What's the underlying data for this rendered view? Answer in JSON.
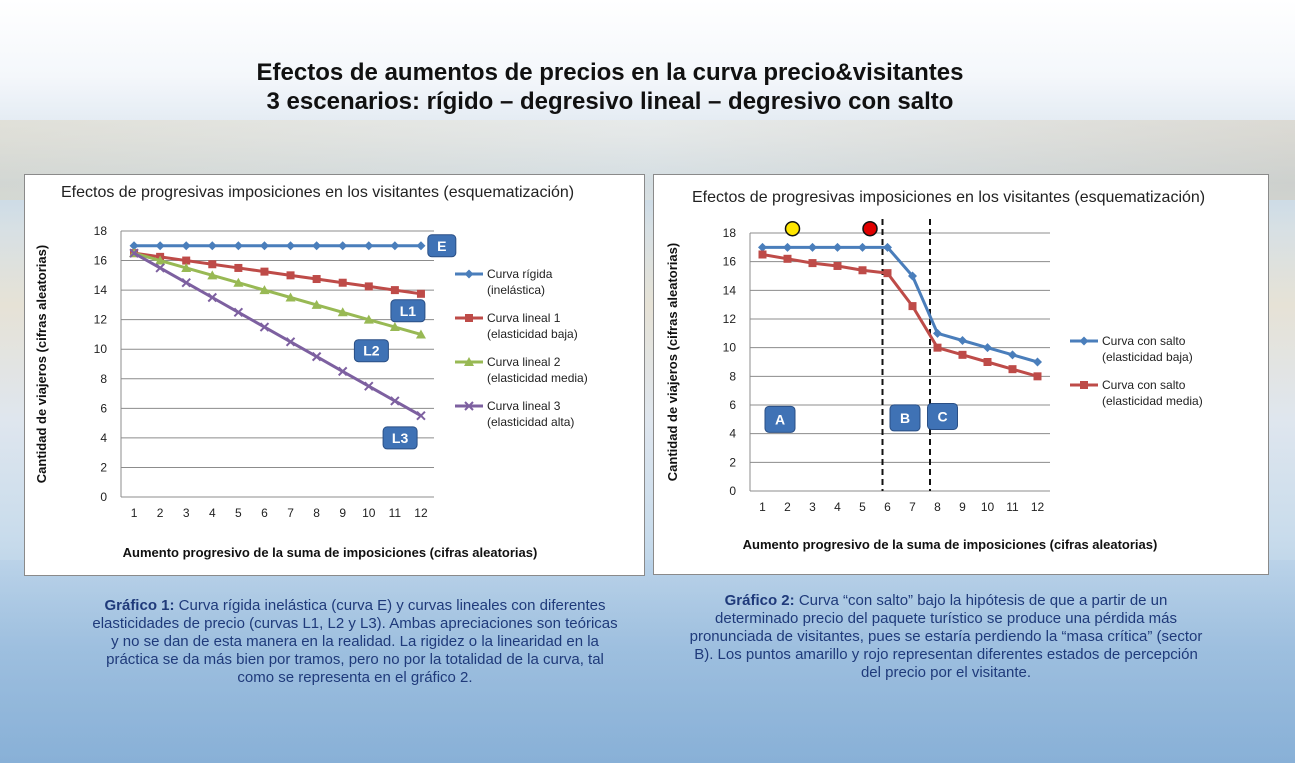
{
  "page": {
    "title_line1": "Efectos de aumentos de precios en la curva precio&visitantes",
    "title_line2": "3 escenarios: rígido – degresivo lineal – degresivo con salto"
  },
  "colors": {
    "blue": "#4a7ebb",
    "red": "#be4b48",
    "green": "#98b954",
    "purple": "#7d60a0",
    "badge": "#3f72b5",
    "caption": "#1f3a7a"
  },
  "chart_data": [
    {
      "type": "line",
      "title": "Efectos de progresivas imposiciones en los visitantes (esquematización)",
      "xlabel": "Aumento progresivo de la suma de imposiciones (cifras aleatorias)",
      "ylabel": "Cantidad de viajeros (cifras aleatorias)",
      "categories": [
        "1",
        "2",
        "3",
        "4",
        "5",
        "6",
        "7",
        "8",
        "9",
        "10",
        "11",
        "12"
      ],
      "y_ticks": [
        "0",
        "2",
        "4",
        "6",
        "8",
        "10",
        "12",
        "14",
        "16",
        "18"
      ],
      "ylim": [
        0,
        18
      ],
      "grid": true,
      "legend_position": "right",
      "series": [
        {
          "name": "Curva rígida",
          "legend_line2": "(inelástica)",
          "color": "#4a7ebb",
          "marker": "diamond",
          "values": [
            17,
            17,
            17,
            17,
            17,
            17,
            17,
            17,
            17,
            17,
            17,
            17
          ]
        },
        {
          "name": "Curva lineal 1",
          "legend_line2": "(elasticidad baja)",
          "color": "#be4b48",
          "marker": "square",
          "values": [
            16.5,
            16.25,
            16,
            15.75,
            15.5,
            15.25,
            15,
            14.75,
            14.5,
            14.25,
            14,
            13.75
          ]
        },
        {
          "name": "Curva lineal 2",
          "legend_line2": "(elasticidad media)",
          "color": "#98b954",
          "marker": "triangle",
          "values": [
            16.5,
            16,
            15.5,
            15,
            14.5,
            14,
            13.5,
            13,
            12.5,
            12,
            11.5,
            11
          ]
        },
        {
          "name": "Curva lineal 3",
          "legend_line2": "(elasticidad alta)",
          "color": "#7d60a0",
          "marker": "x",
          "values": [
            16.5,
            15.5,
            14.5,
            13.5,
            12.5,
            11.5,
            10.5,
            9.5,
            8.5,
            7.5,
            6.5,
            5.5
          ]
        }
      ],
      "badges": [
        {
          "text": "E",
          "x": 12.8,
          "y": 17
        },
        {
          "text": "L1",
          "x": 11.5,
          "y": 12.6
        },
        {
          "text": "L2",
          "x": 10.1,
          "y": 9.9
        },
        {
          "text": "L3",
          "x": 11.2,
          "y": 4.0
        }
      ]
    },
    {
      "type": "line",
      "title": "Efectos de progresivas imposiciones en los visitantes (esquematización)",
      "xlabel": "Aumento progresivo de la suma de imposiciones (cifras aleatorias)",
      "ylabel": "Cantidad de viajeros (cifras aleatorias)",
      "categories": [
        "1",
        "2",
        "3",
        "4",
        "5",
        "6",
        "7",
        "8",
        "9",
        "10",
        "11",
        "12"
      ],
      "y_ticks": [
        "0",
        "2",
        "4",
        "6",
        "8",
        "10",
        "12",
        "14",
        "16",
        "18"
      ],
      "ylim": [
        0,
        18
      ],
      "grid": true,
      "legend_position": "right",
      "series": [
        {
          "name": "Curva con salto",
          "legend_line2": "(elasticidad baja)",
          "color": "#4a7ebb",
          "marker": "diamond",
          "values": [
            17,
            17,
            17,
            17,
            17,
            17,
            15,
            11,
            10.5,
            10,
            9.5,
            9
          ]
        },
        {
          "name": "Curva con salto",
          "legend_line2": "(elasticidad media)",
          "color": "#be4b48",
          "marker": "square",
          "values": [
            16.5,
            16.2,
            15.9,
            15.7,
            15.4,
            15.2,
            12.9,
            10,
            9.5,
            9,
            8.5,
            8
          ]
        }
      ],
      "dividers_x": [
        5.8,
        7.7
      ],
      "sector_badges": [
        {
          "text": "A",
          "x": 1.7,
          "y": 5
        },
        {
          "text": "B",
          "x": 6.7,
          "y": 5.1
        },
        {
          "text": "C",
          "x": 8.2,
          "y": 5.2
        }
      ],
      "dots": [
        {
          "x": 2.2,
          "y": 18.3,
          "color": "#ffe600"
        },
        {
          "x": 5.3,
          "y": 18.3,
          "color": "#e00000"
        }
      ]
    }
  ],
  "captions": {
    "c1_label": "Gráfico 1:",
    "c1_text": " Curva rígida inelástica (curva E) y curvas lineales con diferentes elasticidades de precio (curvas L1, L2 y L3). Ambas apreciaciones son teóricas y no se dan de esta manera en la realidad. La rigidez o la linearidad en la práctica se da más bien por tramos, pero no por la totalidad de la curva, tal como se representa  en el gráfico 2.",
    "c2_label": "Gráfico 2:",
    "c2_text": " Curva “con salto” bajo la hipótesis de que a partir de un determinado precio del paquete turístico se produce una pérdida más pronunciada de visitantes, pues se estaría perdiendo la “masa crítica” (sector B).  Los puntos amarillo y rojo representan diferentes estados de percepción del precio por el visitante."
  }
}
